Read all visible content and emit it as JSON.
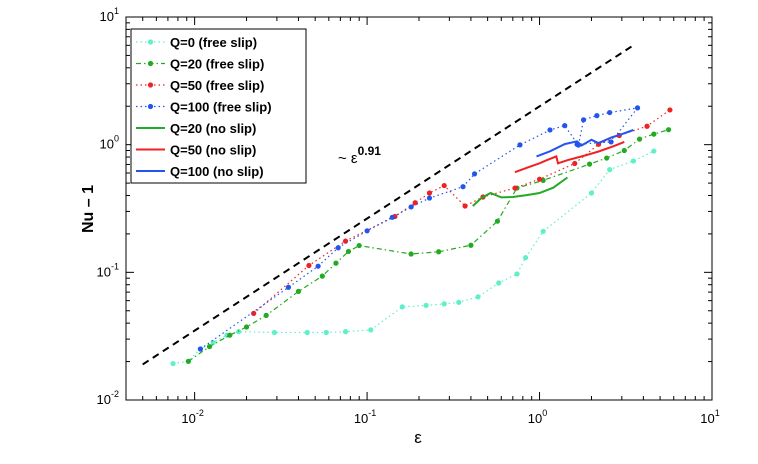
{
  "chart_data": {
    "type": "line",
    "xscale": "log",
    "yscale": "log",
    "xlim": [
      0.004,
      10
    ],
    "ylim": [
      0.01,
      10
    ],
    "xlabel": "ε",
    "ylabel": "Nu – 1",
    "xticks": [
      {
        "value": 0.01,
        "base": "10",
        "exp": "-2"
      },
      {
        "value": 0.1,
        "base": "10",
        "exp": "-1"
      },
      {
        "value": 1,
        "base": "10",
        "exp": "0"
      },
      {
        "value": 10,
        "base": "10",
        "exp": "1"
      }
    ],
    "yticks": [
      {
        "value": 0.01,
        "base": "10",
        "exp": "-2"
      },
      {
        "value": 0.1,
        "base": "10",
        "exp": "-1"
      },
      {
        "value": 1,
        "base": "10",
        "exp": "0"
      },
      {
        "value": 10,
        "base": "10",
        "exp": "1"
      }
    ],
    "legend_position": "top-left",
    "annotation": {
      "prefix": "~ ε",
      "sup": "0.91",
      "x": 0.085,
      "y": 1.15
    },
    "reference_line": {
      "points": [
        [
          0.005,
          0.019
        ],
        [
          3.5,
          6.0
        ]
      ],
      "color": "#000000",
      "style": "dashed"
    },
    "series": [
      {
        "name": "Q=0 (free slip)",
        "color": "#5EF0C8",
        "style": "dotted",
        "markers": true,
        "points": [
          [
            0.0075,
            0.0193
          ],
          [
            0.0092,
            0.0201
          ],
          [
            0.0108,
            0.0251
          ],
          [
            0.0128,
            0.0282
          ],
          [
            0.0154,
            0.0322
          ],
          [
            0.018,
            0.0343
          ],
          [
            0.029,
            0.0338
          ],
          [
            0.045,
            0.0338
          ],
          [
            0.058,
            0.0338
          ],
          [
            0.075,
            0.0343
          ],
          [
            0.105,
            0.0354
          ],
          [
            0.16,
            0.0536
          ],
          [
            0.22,
            0.0551
          ],
          [
            0.28,
            0.0566
          ],
          [
            0.34,
            0.0582
          ],
          [
            0.44,
            0.0642
          ],
          [
            0.58,
            0.0825
          ],
          [
            0.74,
            0.0971
          ],
          [
            0.83,
            0.1303
          ],
          [
            1.05,
            0.2095
          ],
          [
            2.0,
            0.4181
          ],
          [
            2.55,
            0.6376
          ],
          [
            3.5,
            0.7446
          ],
          [
            4.6,
            0.8911
          ]
        ]
      },
      {
        "name": "Q=20 (free slip)",
        "color": "#22AA22",
        "style": "dashdot",
        "markers": true,
        "points": [
          [
            0.0092,
            0.0201
          ],
          [
            0.0122,
            0.0262
          ],
          [
            0.016,
            0.0322
          ],
          [
            0.02,
            0.0373
          ],
          [
            0.026,
            0.046
          ],
          [
            0.04,
            0.0709
          ],
          [
            0.055,
            0.0934
          ],
          [
            0.066,
            0.1181
          ],
          [
            0.078,
            0.1457
          ],
          [
            0.09,
            0.1621
          ],
          [
            0.18,
            0.1392
          ],
          [
            0.26,
            0.1449
          ],
          [
            0.4,
            0.163
          ],
          [
            0.57,
            0.2515
          ],
          [
            0.74,
            0.4573
          ],
          [
            1.05,
            0.5254
          ],
          [
            1.95,
            0.7041
          ],
          [
            2.45,
            0.7856
          ],
          [
            3.1,
            0.8998
          ],
          [
            3.8,
            1.1051
          ],
          [
            4.6,
            1.2099
          ],
          [
            5.6,
            1.3094
          ]
        ]
      },
      {
        "name": "Q=50 (free slip)",
        "color": "#EE2222",
        "style": "dotted",
        "markers": true,
        "points": [
          [
            0.022,
            0.0477
          ],
          [
            0.046,
            0.1131
          ],
          [
            0.075,
            0.1756
          ],
          [
            0.145,
            0.2738
          ],
          [
            0.19,
            0.3507
          ],
          [
            0.23,
            0.4181
          ],
          [
            0.28,
            0.4781
          ],
          [
            0.37,
            0.3308
          ],
          [
            0.47,
            0.3892
          ],
          [
            0.72,
            0.4573
          ],
          [
            1.0,
            0.5362
          ],
          [
            1.6,
            0.7119
          ],
          [
            2.2,
            1.0063
          ],
          [
            2.9,
            1.179
          ],
          [
            4.2,
            1.3943
          ],
          [
            5.7,
            1.8706
          ]
        ]
      },
      {
        "name": "Q=100 (free slip)",
        "color": "#2255EE",
        "style": "dotted",
        "markers": true,
        "points": [
          [
            0.0108,
            0.0251
          ],
          [
            0.035,
            0.0764
          ],
          [
            0.052,
            0.1117
          ],
          [
            0.068,
            0.1558
          ],
          [
            0.1,
            0.2115
          ],
          [
            0.14,
            0.2698
          ],
          [
            0.18,
            0.3252
          ],
          [
            0.23,
            0.3818
          ],
          [
            0.36,
            0.4686
          ],
          [
            0.42,
            0.5904
          ],
          [
            0.77,
            0.9966
          ],
          [
            1.15,
            1.3037
          ],
          [
            1.4,
            1.4094
          ],
          [
            1.68,
            0.9924
          ],
          [
            1.8,
            1.5651
          ],
          [
            2.15,
            1.6877
          ],
          [
            2.55,
            1.7847
          ],
          [
            3.7,
            1.9412
          ],
          [
            2.6,
            1.0505
          ],
          [
            1.65,
            1.0063
          ]
        ]
      },
      {
        "name": "Q=20 (no slip)",
        "color": "#22AA22",
        "style": "solid",
        "markers": false,
        "points": [
          [
            0.41,
            0.3308
          ],
          [
            0.46,
            0.382
          ],
          [
            0.52,
            0.4181
          ],
          [
            0.6,
            0.3862
          ],
          [
            0.7,
            0.3892
          ],
          [
            0.85,
            0.4033
          ],
          [
            1.0,
            0.4181
          ],
          [
            1.2,
            0.4598
          ],
          [
            1.45,
            0.5535
          ]
        ]
      },
      {
        "name": "Q=50 (no slip)",
        "color": "#EE2222",
        "style": "solid",
        "markers": false,
        "points": [
          [
            0.72,
            0.6088
          ],
          [
            0.85,
            0.6613
          ],
          [
            1.0,
            0.7151
          ],
          [
            1.1,
            0.7563
          ],
          [
            1.25,
            0.8088
          ],
          [
            1.28,
            0.7151
          ],
          [
            1.45,
            0.7563
          ],
          [
            1.8,
            0.8172
          ],
          [
            2.2,
            0.8838
          ],
          [
            2.7,
            0.975
          ],
          [
            3.1,
            1.0505
          ]
        ]
      },
      {
        "name": "Q=100 (no slip)",
        "color": "#2255EE",
        "style": "solid",
        "markers": false,
        "points": [
          [
            0.96,
            0.8088
          ],
          [
            1.15,
            0.8866
          ],
          [
            1.4,
            1.0103
          ],
          [
            1.65,
            1.0624
          ],
          [
            1.75,
            0.9854
          ],
          [
            2.0,
            1.0914
          ],
          [
            2.2,
            1.0283
          ],
          [
            2.6,
            1.1355
          ],
          [
            3.05,
            1.2183
          ],
          [
            3.5,
            1.3037
          ]
        ]
      }
    ]
  }
}
